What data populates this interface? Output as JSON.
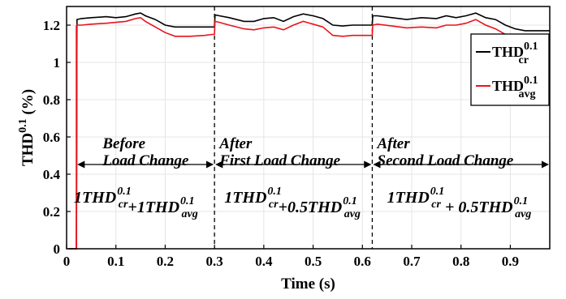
{
  "chart_data": {
    "type": "line",
    "xlabel": "Time (s)",
    "ylabel": {
      "base": "THD",
      "sup": "0.1",
      "unit": " (%)"
    },
    "xlim": [
      0,
      0.98
    ],
    "ylim": [
      0,
      1.3
    ],
    "xticks": [
      "0",
      "0.1",
      "0.2",
      "0.3",
      "0.4",
      "0.5",
      "0.6",
      "0.7",
      "0.8",
      "0.9"
    ],
    "yticks": [
      "0",
      "0.2",
      "0.4",
      "0.6",
      "0.8",
      "1",
      "1.2"
    ],
    "grid": true,
    "legend_position": "top-right",
    "series": [
      {
        "name": "THD_cr^0.1",
        "label": {
          "base": "THD",
          "sup": "0.1",
          "sub": "cr"
        },
        "color": "#000000",
        "x": [
          0.02,
          0.021,
          0.03,
          0.05,
          0.08,
          0.1,
          0.12,
          0.14,
          0.15,
          0.16,
          0.18,
          0.2,
          0.22,
          0.25,
          0.28,
          0.295,
          0.3,
          0.301,
          0.31,
          0.33,
          0.36,
          0.38,
          0.4,
          0.42,
          0.44,
          0.46,
          0.48,
          0.5,
          0.52,
          0.54,
          0.56,
          0.58,
          0.6,
          0.615,
          0.62,
          0.621,
          0.63,
          0.66,
          0.69,
          0.72,
          0.75,
          0.77,
          0.79,
          0.81,
          0.83,
          0.85,
          0.87,
          0.89,
          0.91,
          0.93,
          0.95,
          0.97,
          0.98
        ],
        "y": [
          0,
          1.23,
          1.235,
          1.24,
          1.245,
          1.24,
          1.245,
          1.26,
          1.265,
          1.25,
          1.23,
          1.2,
          1.19,
          1.19,
          1.19,
          1.19,
          1.19,
          1.255,
          1.25,
          1.24,
          1.22,
          1.22,
          1.235,
          1.24,
          1.22,
          1.245,
          1.26,
          1.25,
          1.235,
          1.2,
          1.195,
          1.2,
          1.2,
          1.2,
          1.2,
          1.25,
          1.25,
          1.24,
          1.23,
          1.24,
          1.235,
          1.25,
          1.24,
          1.25,
          1.265,
          1.24,
          1.23,
          1.2,
          1.18,
          1.17,
          1.17,
          1.17,
          1.17
        ]
      },
      {
        "name": "THD_avg^0.1",
        "label": {
          "base": "THD",
          "sup": "0.1",
          "sub": "avg"
        },
        "color": "#e8141c",
        "x": [
          0.02,
          0.021,
          0.03,
          0.05,
          0.08,
          0.1,
          0.12,
          0.14,
          0.15,
          0.16,
          0.18,
          0.2,
          0.22,
          0.25,
          0.28,
          0.295,
          0.3,
          0.301,
          0.31,
          0.33,
          0.36,
          0.38,
          0.4,
          0.42,
          0.44,
          0.46,
          0.48,
          0.5,
          0.52,
          0.54,
          0.56,
          0.58,
          0.6,
          0.615,
          0.62,
          0.621,
          0.63,
          0.66,
          0.69,
          0.72,
          0.75,
          0.77,
          0.79,
          0.81,
          0.83,
          0.85,
          0.87,
          0.89,
          0.91,
          0.93,
          0.95,
          0.97,
          0.98
        ],
        "y": [
          0,
          1.2,
          1.2,
          1.205,
          1.21,
          1.215,
          1.22,
          1.235,
          1.24,
          1.22,
          1.19,
          1.16,
          1.14,
          1.14,
          1.145,
          1.15,
          1.15,
          1.22,
          1.215,
          1.2,
          1.18,
          1.175,
          1.185,
          1.19,
          1.175,
          1.2,
          1.22,
          1.205,
          1.19,
          1.145,
          1.14,
          1.145,
          1.145,
          1.145,
          1.145,
          1.2,
          1.205,
          1.195,
          1.185,
          1.19,
          1.185,
          1.2,
          1.2,
          1.21,
          1.23,
          1.2,
          1.18,
          1.15,
          1.14,
          1.13,
          1.13,
          1.13,
          1.13
        ]
      }
    ],
    "dividers": [
      0.3,
      0.62
    ],
    "phases": [
      {
        "line1": "Before",
        "line2": "Load Change",
        "arrow": [
          0.02,
          0.3
        ],
        "text_x": 0.05
      },
      {
        "line1": "After",
        "line2": "First Load Change",
        "arrow": [
          0.3,
          0.62
        ],
        "text_x": 0.31
      },
      {
        "line1": "After",
        "line2": "Second Load Change",
        "arrow": [
          0.62,
          0.98
        ],
        "text_x": 0.63
      }
    ],
    "formulas": [
      {
        "parts": [
          [
            "1THD",
            "0.1",
            "cr"
          ],
          [
            "+1THD",
            "0.1",
            "avg"
          ]
        ],
        "x": 0.005
      },
      {
        "parts": [
          [
            "1THD",
            "0.1",
            "cr"
          ],
          [
            "+0.5THD",
            "0.1",
            "avg"
          ]
        ],
        "x": 0.31
      },
      {
        "parts": [
          [
            "1THD",
            "0.1",
            "cr"
          ],
          [
            " + 0.5THD",
            "0.1",
            "avg"
          ]
        ],
        "x": 0.64
      }
    ]
  }
}
